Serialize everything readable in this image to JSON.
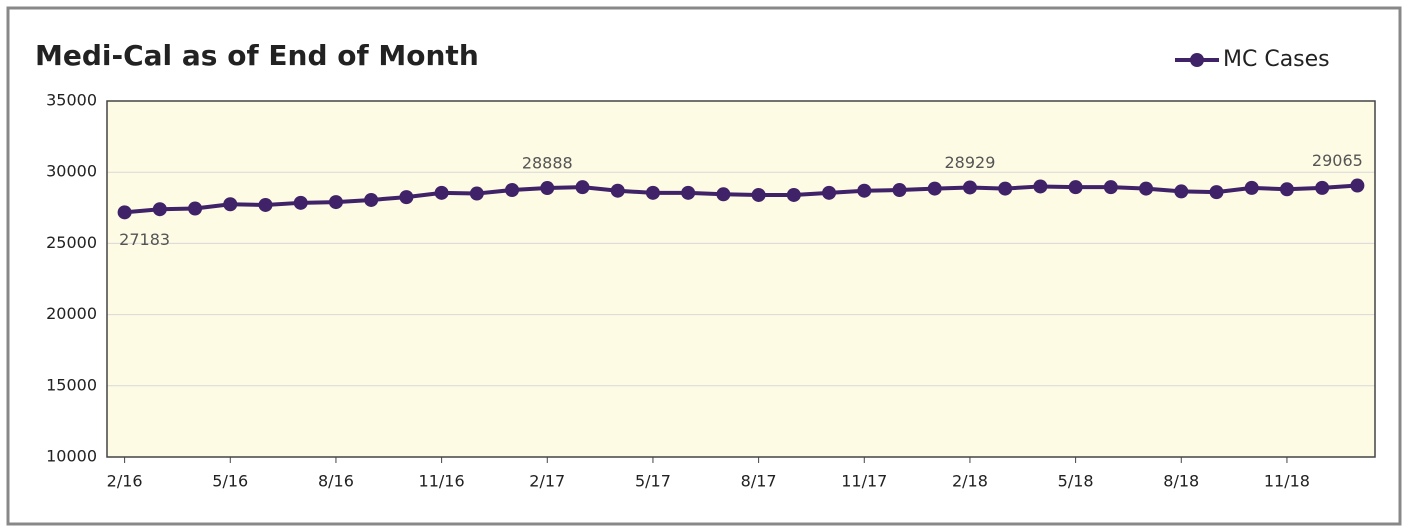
{
  "chart_data": {
    "type": "line",
    "title": "Medi-Cal as of End of Month",
    "categories": [
      "2/16",
      null,
      null,
      "5/16",
      null,
      null,
      "8/16",
      null,
      null,
      "11/16",
      null,
      null,
      "2/17",
      null,
      null,
      "5/17",
      null,
      null,
      "8/17",
      null,
      null,
      "11/17",
      null,
      null,
      "2/18",
      null,
      null,
      "5/18",
      null,
      null,
      "8/18",
      null,
      null,
      "11/18",
      null,
      null
    ],
    "series": [
      {
        "name": "MC Cases",
        "color": "#3f2268",
        "values": [
          27183,
          27400,
          27450,
          27750,
          27700,
          27850,
          27900,
          28050,
          28250,
          28550,
          28500,
          28750,
          28888,
          28950,
          28700,
          28550,
          28550,
          28450,
          28400,
          28400,
          28550,
          28700,
          28750,
          28850,
          28929,
          28850,
          29000,
          28950,
          28950,
          28850,
          28650,
          28600,
          28900,
          28800,
          28900,
          29065
        ],
        "labeled_points": [
          0,
          12,
          24,
          35
        ]
      }
    ],
    "ylim": [
      10000,
      35000
    ],
    "yticks": [
      10000,
      15000,
      20000,
      25000,
      30000,
      35000
    ],
    "grid": true,
    "legend": "top-right",
    "plot_background": "#fdfbe4"
  }
}
